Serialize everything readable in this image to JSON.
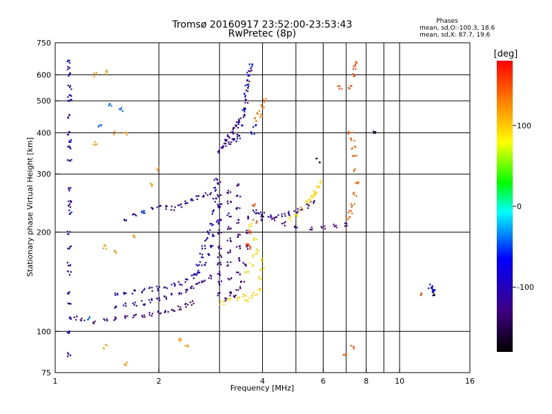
{
  "chart_data": {
    "type": "scatter",
    "title": "Tromsø 20160917 23:52:00-23:53:43",
    "subtitle": "RwPretec (8p)",
    "xlabel": "Frequency [MHz]",
    "ylabel": "Stationary phase Virtual Height [km]",
    "x_scale": "log",
    "y_scale": "log",
    "xlim": [
      1,
      16
    ],
    "ylim": [
      75,
      750
    ],
    "x_ticks": [
      1,
      2,
      4,
      6,
      8,
      10,
      16
    ],
    "y_ticks": [
      75,
      100,
      200,
      300,
      400,
      500,
      600,
      750
    ],
    "x_grid": [
      2,
      3,
      4,
      5,
      6,
      7,
      8,
      9,
      10
    ],
    "y_grid": [
      100,
      200,
      300,
      400,
      500,
      600
    ],
    "phases_legend": {
      "title": "Phases",
      "line1": "mean, sd,O:-100.3, 18.6",
      "line2": "mean, sd,X:  87.7, 19.6"
    },
    "colorbar": {
      "label": "[deg]",
      "range": [
        -180,
        180
      ],
      "ticks": [
        100,
        0,
        -100
      ],
      "colors": [
        "#ff0000",
        "#ff8000",
        "#ffff00",
        "#00ff00",
        "#00ffff",
        "#0000ff",
        "#400080",
        "#000000"
      ]
    },
    "series": [
      {
        "points": [
          [
            1.1,
            630
          ],
          [
            1.1,
            600
          ],
          [
            1.1,
            550
          ],
          [
            1.1,
            500
          ],
          [
            1.1,
            450
          ],
          [
            1.1,
            400
          ],
          [
            1.1,
            360
          ],
          [
            1.1,
            330
          ],
          [
            1.1,
            270
          ],
          [
            1.1,
            250
          ],
          [
            1.1,
            240
          ],
          [
            1.1,
            200
          ],
          [
            1.1,
            180
          ],
          [
            1.1,
            160
          ],
          [
            1.1,
            150
          ],
          [
            1.1,
            130
          ],
          [
            1.1,
            120
          ],
          [
            1.1,
            100
          ],
          [
            1.1,
            85
          ]
        ],
        "phase": -110
      },
      {
        "points": [
          [
            1.1,
            660
          ],
          [
            1.1,
            520
          ],
          [
            1.1,
            380
          ],
          [
            1.1,
            230
          ],
          [
            1.1,
            110
          ]
        ],
        "phase": -70
      },
      {
        "points": [
          [
            1.15,
            110
          ],
          [
            1.2,
            108
          ],
          [
            1.3,
            107
          ],
          [
            1.4,
            108
          ],
          [
            1.5,
            109
          ],
          [
            1.6,
            110
          ],
          [
            1.7,
            111
          ],
          [
            1.8,
            112
          ],
          [
            1.9,
            113
          ],
          [
            2.0,
            114
          ],
          [
            2.1,
            115
          ],
          [
            2.2,
            116
          ],
          [
            2.3,
            118
          ],
          [
            2.4,
            120
          ],
          [
            2.5,
            122
          ]
        ],
        "phase": -130
      },
      {
        "points": [
          [
            1.5,
            118
          ],
          [
            1.6,
            120
          ],
          [
            1.7,
            121
          ],
          [
            1.8,
            122
          ],
          [
            1.9,
            124
          ],
          [
            2.0,
            125
          ],
          [
            2.1,
            127
          ],
          [
            2.2,
            129
          ],
          [
            2.3,
            131
          ],
          [
            2.4,
            133
          ],
          [
            2.5,
            136
          ],
          [
            2.6,
            139
          ],
          [
            2.7,
            142
          ],
          [
            2.8,
            146
          ]
        ],
        "phase": -115
      },
      {
        "points": [
          [
            1.5,
            130
          ],
          [
            1.6,
            131
          ],
          [
            1.7,
            132
          ],
          [
            1.8,
            133
          ],
          [
            1.9,
            134
          ],
          [
            2.0,
            135
          ],
          [
            2.1,
            136
          ],
          [
            2.2,
            138
          ],
          [
            2.3,
            140
          ],
          [
            2.4,
            143
          ],
          [
            2.5,
            147
          ],
          [
            2.6,
            152
          ],
          [
            2.7,
            160
          ],
          [
            2.8,
            170
          ],
          [
            2.85,
            180
          ],
          [
            2.9,
            195
          ],
          [
            2.95,
            215
          ],
          [
            3.0,
            240
          ]
        ],
        "phase": -95
      },
      {
        "points": [
          [
            2.55,
            150
          ],
          [
            2.6,
            160
          ],
          [
            2.65,
            170
          ],
          [
            2.7,
            180
          ],
          [
            2.75,
            190
          ],
          [
            2.8,
            200
          ],
          [
            2.85,
            210
          ],
          [
            2.88,
            230
          ],
          [
            2.9,
            250
          ],
          [
            2.92,
            270
          ],
          [
            2.93,
            290
          ]
        ],
        "phase": -90
      },
      {
        "points": [
          [
            1.6,
            220
          ],
          [
            1.7,
            225
          ],
          [
            1.8,
            230
          ],
          [
            1.9,
            235
          ],
          [
            2.0,
            240
          ],
          [
            2.1,
            238
          ],
          [
            2.2,
            236
          ],
          [
            2.3,
            240
          ],
          [
            2.4,
            245
          ],
          [
            2.5,
            250
          ],
          [
            2.6,
            255
          ],
          [
            2.7,
            260
          ],
          [
            2.8,
            262
          ]
        ],
        "phase": -110
      },
      {
        "points": [
          [
            3.0,
            130
          ],
          [
            3.0,
            140
          ],
          [
            3.0,
            150
          ],
          [
            3.0,
            160
          ],
          [
            3.0,
            170
          ],
          [
            3.0,
            180
          ],
          [
            3.0,
            200
          ],
          [
            3.0,
            220
          ],
          [
            3.0,
            240
          ],
          [
            3.0,
            260
          ],
          [
            3.0,
            280
          ],
          [
            3.2,
            130
          ],
          [
            3.2,
            145
          ],
          [
            3.2,
            160
          ],
          [
            3.2,
            175
          ],
          [
            3.2,
            190
          ],
          [
            3.2,
            205
          ],
          [
            3.2,
            225
          ],
          [
            3.2,
            245
          ],
          [
            3.2,
            265
          ],
          [
            3.4,
            135
          ],
          [
            3.4,
            150
          ],
          [
            3.4,
            165
          ],
          [
            3.4,
            180
          ],
          [
            3.4,
            195
          ],
          [
            3.4,
            215
          ],
          [
            3.4,
            235
          ],
          [
            3.4,
            255
          ],
          [
            3.4,
            280
          ],
          [
            3.1,
            125
          ],
          [
            3.3,
            128
          ],
          [
            3.5,
            140
          ],
          [
            3.55,
            160
          ],
          [
            3.6,
            180
          ],
          [
            3.6,
            200
          ],
          [
            3.6,
            220
          ]
        ],
        "phase": -125
      },
      {
        "points": [
          [
            3.6,
            125
          ],
          [
            3.7,
            127
          ],
          [
            3.8,
            130
          ],
          [
            3.9,
            135
          ],
          [
            3.95,
            145
          ],
          [
            4.0,
            155
          ],
          [
            4.0,
            165
          ],
          [
            3.9,
            175
          ],
          [
            3.8,
            190
          ],
          [
            3.7,
            210
          ],
          [
            3.6,
            150
          ],
          [
            3.7,
            160
          ],
          [
            3.8,
            170
          ],
          [
            3.05,
            122
          ],
          [
            3.2,
            124
          ],
          [
            3.4,
            126
          ],
          [
            3.55,
            128
          ]
        ],
        "phase": 95
      },
      {
        "points": [
          [
            3.6,
            185
          ],
          [
            3.7,
            200
          ],
          [
            3.8,
            215
          ],
          [
            3.75,
            240
          ],
          [
            3.7,
            180
          ]
        ],
        "phase": 150
      },
      {
        "points": [
          [
            3.0,
            350
          ],
          [
            3.05,
            360
          ],
          [
            3.1,
            370
          ],
          [
            3.15,
            380
          ],
          [
            3.2,
            390
          ],
          [
            3.25,
            400
          ],
          [
            3.3,
            410
          ],
          [
            3.35,
            420
          ],
          [
            3.4,
            430
          ],
          [
            3.45,
            440
          ],
          [
            3.5,
            450
          ],
          [
            3.55,
            470
          ],
          [
            3.6,
            500
          ],
          [
            3.62,
            540
          ],
          [
            3.65,
            580
          ],
          [
            3.68,
            620
          ],
          [
            3.2,
            370
          ],
          [
            3.3,
            380
          ],
          [
            3.4,
            390
          ]
        ],
        "phase": -120
      },
      {
        "points": [
          [
            3.4,
            380
          ],
          [
            3.45,
            420
          ],
          [
            3.5,
            470
          ],
          [
            3.55,
            520
          ],
          [
            3.6,
            560
          ],
          [
            3.63,
            600
          ],
          [
            3.7,
            640
          ],
          [
            3.75,
            400
          ],
          [
            3.8,
            420
          ]
        ],
        "phase": -60
      },
      {
        "points": [
          [
            3.8,
            440
          ],
          [
            3.9,
            460
          ],
          [
            4.0,
            480
          ],
          [
            4.05,
            500
          ],
          [
            3.95,
            450
          ]
        ],
        "phase": 130
      },
      {
        "points": [
          [
            3.8,
            230
          ],
          [
            3.9,
            228
          ],
          [
            4.0,
            226
          ],
          [
            4.2,
            225
          ],
          [
            4.4,
            224
          ],
          [
            4.6,
            226
          ],
          [
            4.8,
            228
          ],
          [
            5.0,
            232
          ],
          [
            5.2,
            236
          ],
          [
            5.4,
            240
          ],
          [
            5.6,
            246
          ]
        ],
        "phase": -105
      },
      {
        "points": [
          [
            4.0,
            220
          ],
          [
            4.3,
            218
          ],
          [
            4.6,
            212
          ],
          [
            5.0,
            208
          ],
          [
            5.5,
            206
          ],
          [
            6.0,
            206
          ],
          [
            6.5,
            208
          ],
          [
            7.0,
            210
          ]
        ],
        "phase": -130
      },
      {
        "points": [
          [
            4.8,
            220
          ],
          [
            5.0,
            225
          ],
          [
            5.2,
            235
          ],
          [
            5.4,
            245
          ],
          [
            5.6,
            255
          ],
          [
            5.7,
            265
          ],
          [
            5.8,
            275
          ],
          [
            5.85,
            285
          ],
          [
            5.7,
            260
          ],
          [
            5.5,
            250
          ]
        ],
        "phase": 95
      },
      {
        "points": [
          [
            7.2,
            400
          ],
          [
            7.3,
            380
          ],
          [
            7.35,
            360
          ],
          [
            7.4,
            340
          ],
          [
            7.45,
            310
          ],
          [
            7.5,
            280
          ],
          [
            7.4,
            260
          ],
          [
            7.3,
            240
          ],
          [
            7.2,
            230
          ],
          [
            7.1,
            220
          ]
        ],
        "phase": 140
      },
      {
        "points": [
          [
            7.3,
            600
          ],
          [
            7.4,
            630
          ],
          [
            7.45,
            650
          ],
          [
            7.2,
            550
          ],
          [
            6.7,
            550
          ],
          [
            7.3,
            90
          ],
          [
            6.9,
            85
          ],
          [
            11.5,
            130
          ]
        ],
        "phase": 150
      },
      {
        "points": [
          [
            12.4,
            135
          ],
          [
            12.6,
            133
          ],
          [
            12.3,
            137
          ]
        ],
        "phase": -70
      },
      {
        "points": [
          [
            12.5,
            130
          ],
          [
            8.5,
            400
          ],
          [
            5.8,
            330
          ]
        ],
        "phase": -160
      },
      {
        "points": [
          [
            1.4,
            610
          ],
          [
            1.3,
            600
          ],
          [
            1.5,
            400
          ],
          [
            1.6,
            400
          ],
          [
            2.0,
            310
          ],
          [
            1.9,
            280
          ],
          [
            1.3,
            370
          ],
          [
            1.4,
            180
          ],
          [
            1.5,
            175
          ],
          [
            1.7,
            195
          ],
          [
            1.6,
            80
          ],
          [
            1.4,
            90
          ],
          [
            2.3,
            95
          ],
          [
            2.4,
            90
          ]
        ],
        "phase": 120
      },
      {
        "points": [
          [
            1.25,
            110
          ],
          [
            1.45,
            490
          ],
          [
            1.55,
            470
          ],
          [
            1.35,
            420
          ],
          [
            1.8,
            230
          ]
        ],
        "phase": -40
      }
    ]
  }
}
